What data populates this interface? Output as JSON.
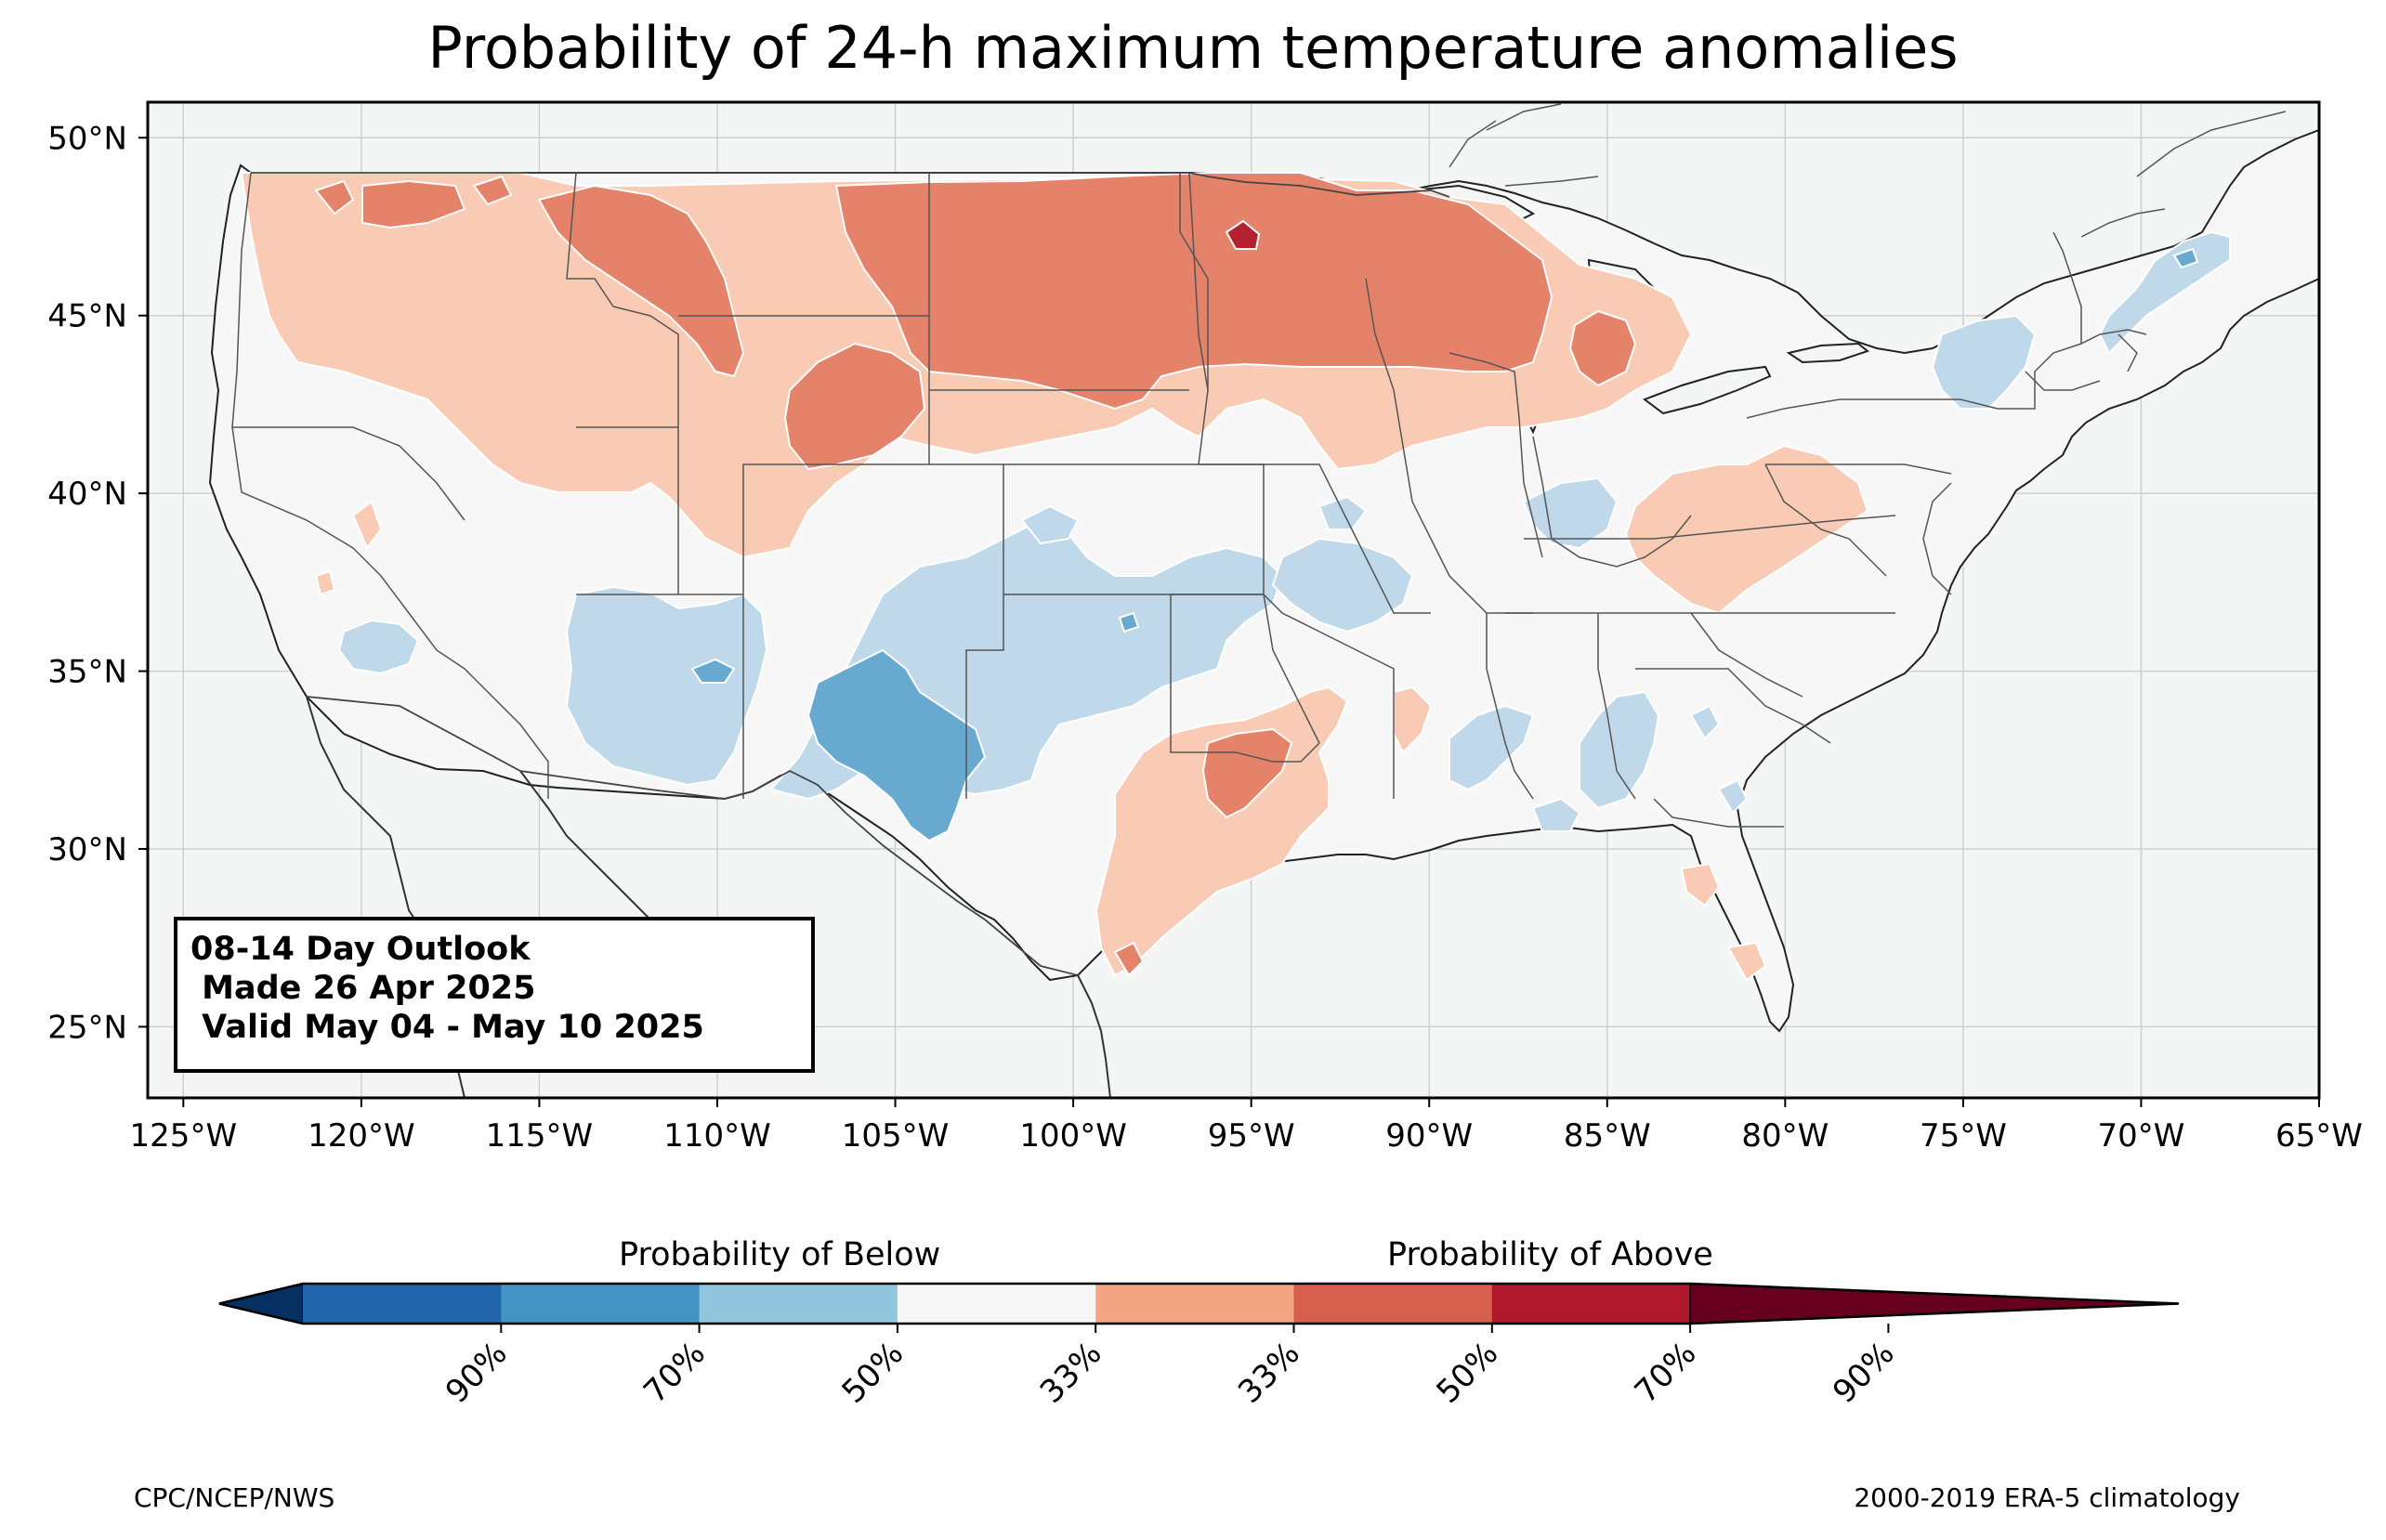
{
  "title": "Probability of 24-h maximum temperature anomalies",
  "info_box": {
    "line1": "08-14 Day Outlook",
    "line2": " Made 26 Apr 2025",
    "line3": " Valid May 04 - May 10 2025"
  },
  "map": {
    "lat_labels": [
      "50°N",
      "45°N",
      "40°N",
      "35°N",
      "30°N",
      "25°N"
    ],
    "lon_labels": [
      "125°W",
      "120°W",
      "115°W",
      "110°W",
      "105°W",
      "100°W",
      "95°W",
      "90°W",
      "85°W",
      "80°W",
      "75°W",
      "70°W",
      "65°W"
    ],
    "extent": {
      "lon": [
        -126,
        -65
      ],
      "lat": [
        23,
        51
      ]
    },
    "colors": {
      "ocean": "#f4f6f6",
      "near_normal": "#f7f7f7",
      "border": "#555555"
    }
  },
  "colorbar": {
    "below_label": "Probability of Below",
    "above_label": "Probability of Above",
    "tick_labels": [
      "90%",
      "70%",
      "50%",
      "33%",
      "33%",
      "50%",
      "70%",
      "90%"
    ],
    "colors": [
      "#053061",
      "#2166ac",
      "#4393c3",
      "#92c5de",
      "#f7f7f7",
      "#f4a582",
      "#d6604d",
      "#b2182b",
      "#67001f"
    ],
    "bin_colors_used": [
      "#67a9cf",
      "#4393c3",
      "#bfd9ea",
      "#f9cbb5",
      "#e4826a",
      "#b6212f"
    ]
  },
  "footer": {
    "left": "CPC/NCEP/NWS",
    "right": "2000-2019 ERA-5 climatology"
  }
}
